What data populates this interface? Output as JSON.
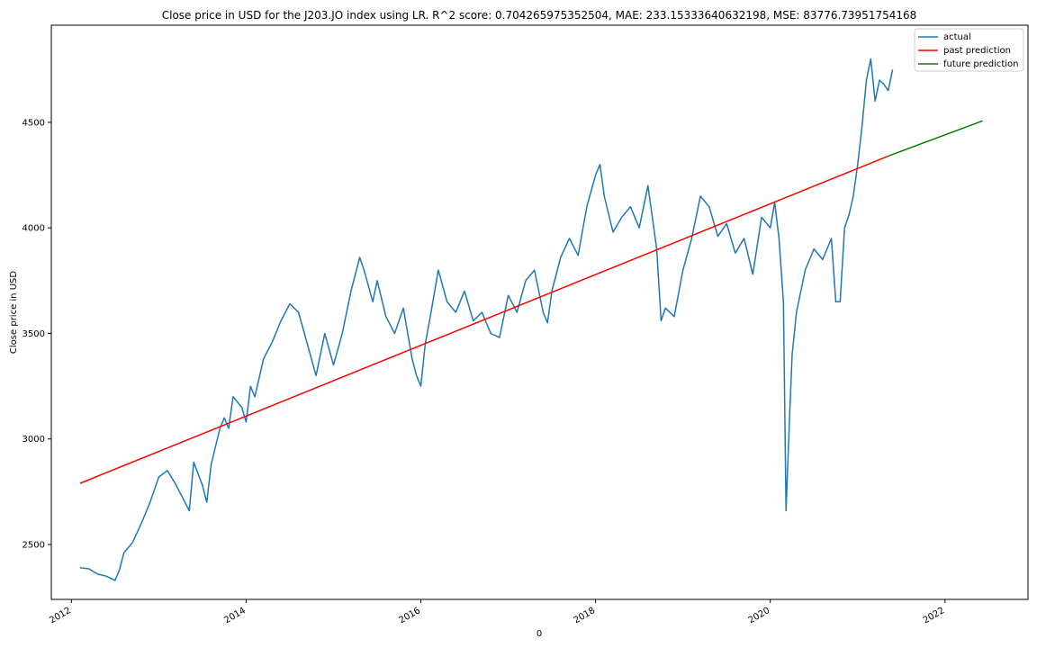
{
  "chart_data": {
    "type": "line",
    "title": "Close price in USD for the J203.JO index using LR. R^2 score: 0.704265975352504, MAE: 233.15333640632198, MSE: 83776.73951754168",
    "xlabel": "0",
    "ylabel": "Close price in USD",
    "xlim": [
      2011.77,
      2022.95
    ],
    "ylim": [
      2240,
      4960
    ],
    "x_ticks": [
      2012,
      2014,
      2016,
      2018,
      2020,
      2022
    ],
    "x_tick_labels": [
      "2012",
      "2014",
      "2016",
      "2018",
      "2020",
      "2022"
    ],
    "y_ticks": [
      2500,
      3000,
      3500,
      4000,
      4500
    ],
    "y_tick_labels": [
      "2500",
      "3000",
      "3500",
      "4000",
      "4500"
    ],
    "grid": false,
    "legend_position": "top-right",
    "series": [
      {
        "name": "actual",
        "color": "#1f77b4",
        "x": [
          2012.1,
          2012.2,
          2012.3,
          2012.4,
          2012.5,
          2012.55,
          2012.6,
          2012.7,
          2012.8,
          2012.9,
          2013.0,
          2013.1,
          2013.2,
          2013.3,
          2013.35,
          2013.4,
          2013.5,
          2013.55,
          2013.6,
          2013.7,
          2013.75,
          2013.8,
          2013.85,
          2013.95,
          2014.0,
          2014.05,
          2014.1,
          2014.2,
          2014.3,
          2014.4,
          2014.5,
          2014.6,
          2014.7,
          2014.8,
          2014.9,
          2015.0,
          2015.1,
          2015.2,
          2015.3,
          2015.35,
          2015.45,
          2015.5,
          2015.6,
          2015.7,
          2015.8,
          2015.9,
          2015.95,
          2016.0,
          2016.05,
          2016.1,
          2016.2,
          2016.3,
          2016.4,
          2016.5,
          2016.6,
          2016.7,
          2016.8,
          2016.9,
          2017.0,
          2017.1,
          2017.2,
          2017.3,
          2017.4,
          2017.45,
          2017.5,
          2017.6,
          2017.7,
          2017.8,
          2017.9,
          2018.0,
          2018.05,
          2018.1,
          2018.2,
          2018.3,
          2018.4,
          2018.5,
          2018.6,
          2018.7,
          2018.75,
          2018.8,
          2018.9,
          2019.0,
          2019.1,
          2019.2,
          2019.3,
          2019.4,
          2019.5,
          2019.6,
          2019.7,
          2019.8,
          2019.9,
          2020.0,
          2020.05,
          2020.1,
          2020.15,
          2020.18,
          2020.22,
          2020.25,
          2020.3,
          2020.4,
          2020.5,
          2020.6,
          2020.7,
          2020.75,
          2020.8,
          2020.85,
          2020.9,
          2020.95,
          2021.0,
          2021.05,
          2021.1,
          2021.15,
          2021.2,
          2021.25,
          2021.3,
          2021.35,
          2021.4
        ],
        "y": [
          2390,
          2385,
          2360,
          2350,
          2330,
          2380,
          2460,
          2510,
          2600,
          2700,
          2820,
          2850,
          2780,
          2700,
          2660,
          2890,
          2780,
          2700,
          2880,
          3050,
          3100,
          3050,
          3200,
          3150,
          3080,
          3250,
          3200,
          3380,
          3460,
          3560,
          3640,
          3600,
          3450,
          3300,
          3500,
          3350,
          3500,
          3700,
          3860,
          3800,
          3650,
          3750,
          3580,
          3500,
          3620,
          3380,
          3300,
          3250,
          3450,
          3560,
          3800,
          3650,
          3600,
          3700,
          3560,
          3600,
          3500,
          3480,
          3680,
          3600,
          3750,
          3800,
          3600,
          3550,
          3700,
          3860,
          3950,
          3870,
          4100,
          4250,
          4300,
          4150,
          3980,
          4050,
          4100,
          4000,
          4200,
          3900,
          3560,
          3620,
          3580,
          3800,
          3950,
          4150,
          4100,
          3960,
          4020,
          3880,
          3950,
          3780,
          4050,
          4000,
          4120,
          3950,
          3650,
          2660,
          3100,
          3400,
          3600,
          3800,
          3900,
          3850,
          3950,
          3650,
          3650,
          4000,
          4060,
          4150,
          4300,
          4480,
          4700,
          4800,
          4600,
          4700,
          4680,
          4650,
          4750
        ],
        "label_name": "actual"
      },
      {
        "name": "past prediction",
        "color": "#ff0000",
        "x": [
          2012.1,
          2021.35
        ],
        "y": [
          2790,
          4340
        ],
        "label_name": "past prediction"
      },
      {
        "name": "future prediction",
        "color": "#008000",
        "x": [
          2021.35,
          2022.43
        ],
        "y": [
          4340,
          4507
        ],
        "label_name": "future prediction"
      }
    ]
  }
}
